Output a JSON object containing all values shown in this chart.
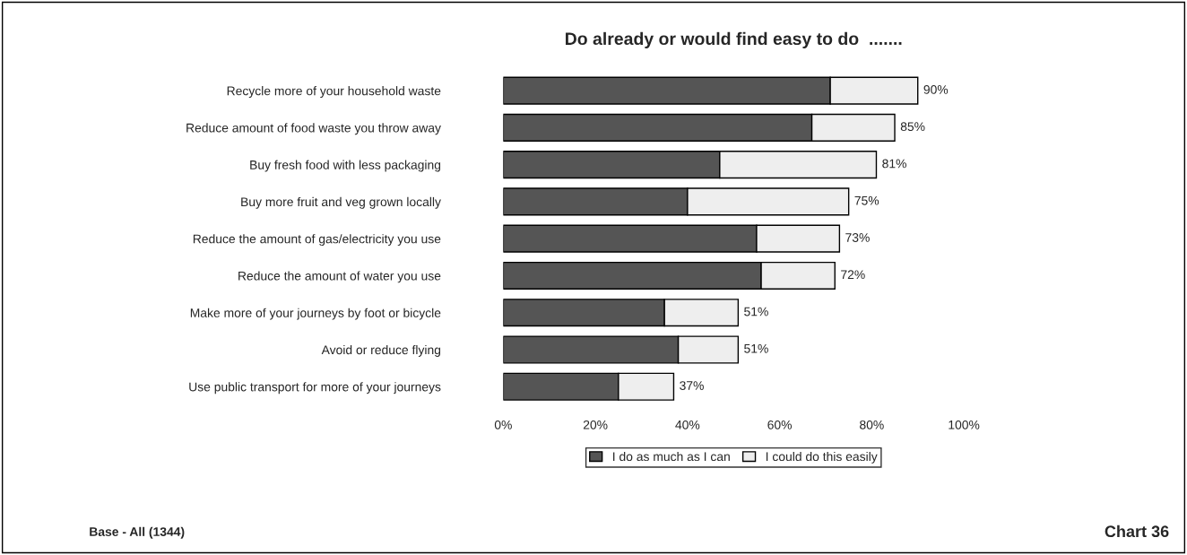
{
  "chart_data": {
    "type": "bar",
    "orientation": "horizontal",
    "stacked": true,
    "title": "Do already or would find easy to do  .......",
    "categories": [
      "Recycle more of your household waste",
      "Reduce amount of food waste you throw away",
      "Buy fresh food with less packaging",
      "Buy more fruit and veg grown locally",
      "Reduce the amount of gas/electricity you use",
      "Reduce the amount of water you use",
      "Make more of your journeys by foot or bicycle",
      "Avoid or reduce flying",
      "Use public transport for more of your journeys"
    ],
    "series": [
      {
        "name": "I do as much as I can",
        "color": "#555555",
        "values": [
          71,
          67,
          47,
          40,
          55,
          56,
          35,
          38,
          25
        ]
      },
      {
        "name": "I could do this easily",
        "color": "#eeeeee",
        "values": [
          19,
          18,
          34,
          35,
          18,
          16,
          16,
          13,
          12
        ]
      }
    ],
    "totals": [
      "90%",
      "85%",
      "81%",
      "75%",
      "73%",
      "72%",
      "51%",
      "51%",
      "37%"
    ],
    "xlim": [
      0,
      100
    ],
    "xticks": [
      {
        "value": 0,
        "label": "0%"
      },
      {
        "value": 20,
        "label": "20%"
      },
      {
        "value": 40,
        "label": "40%"
      },
      {
        "value": 60,
        "label": "60%"
      },
      {
        "value": 80,
        "label": "80%"
      },
      {
        "value": 100,
        "label": "100%"
      }
    ],
    "grid": false,
    "legend": "bottom",
    "annotations": [
      "Base - All (1344)",
      "Chart 36"
    ]
  }
}
